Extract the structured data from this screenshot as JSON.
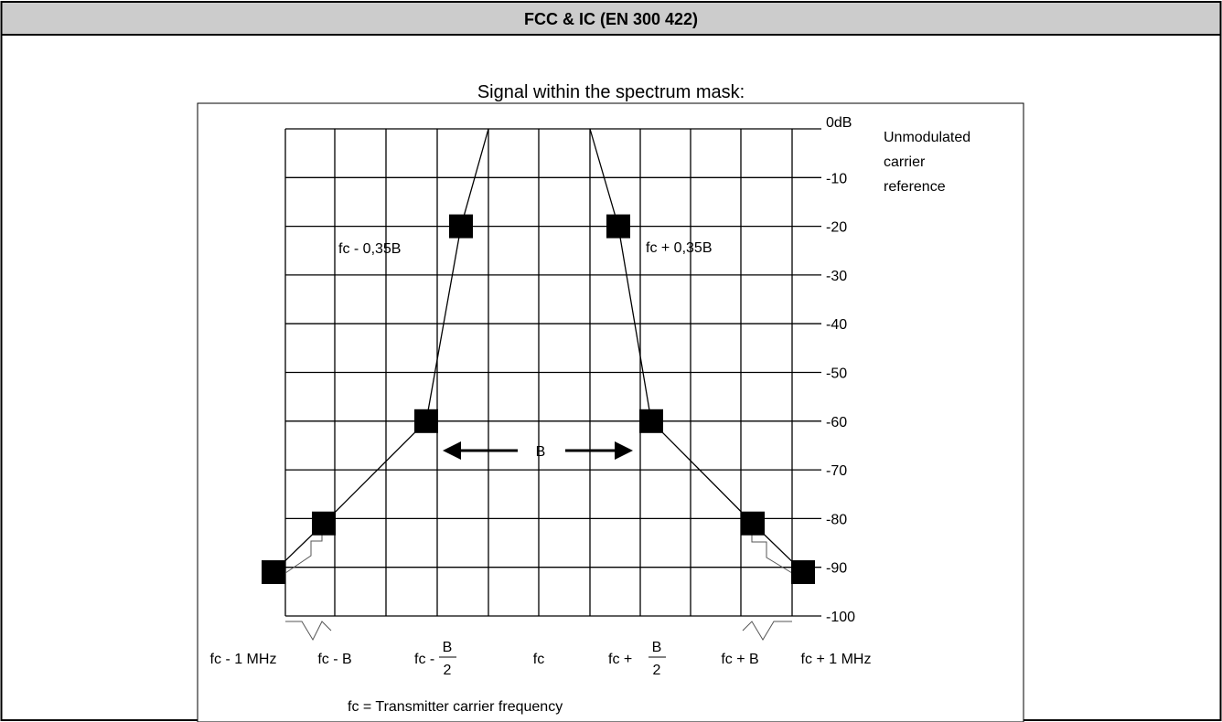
{
  "header": {
    "title": "FCC & IC (EN 300 422)"
  },
  "figure": {
    "caption": "Signal within the spectrum mask:",
    "footnote": "fc = Transmitter carrier frequency",
    "carrier_note": [
      "Unmodulated",
      "carrier",
      "reference"
    ],
    "bandwidth_label": "B",
    "mask_labels": {
      "left": "fc - 0,35B",
      "right": "fc + 0,35B"
    }
  },
  "chart_data": {
    "type": "line",
    "title": "Signal within the spectrum mask:",
    "ylabel": "",
    "xlabel": "",
    "y_tick_labels": [
      "0dB",
      "-10",
      "-20",
      "-30",
      "-40",
      "-50",
      "-60",
      "-70",
      "-80",
      "-90",
      "-100"
    ],
    "ylim": [
      -100,
      0
    ],
    "x_tick_labels": {
      "fc_minus_1mhz": "fc - 1 MHz",
      "fc_minus_b": "fc - B",
      "fc_minus_half_prefix": "fc -",
      "half_b_num": "B",
      "half_b_den": "2",
      "fc": "fc",
      "fc_plus_half_prefix": "fc +",
      "fc_plus_b": "fc + B",
      "fc_plus_1mhz": "fc + 1 MHz"
    },
    "grid": true,
    "series": [
      {
        "name": "",
        "note": "mask upper edge, symmetric about fc",
        "points": [
          {
            "x": "fc - 1 MHz",
            "y": -91
          },
          {
            "x": "fc - B",
            "y": -81
          },
          {
            "x": "fc - B/2",
            "y": -60
          },
          {
            "x": "fc - 0,35B",
            "y": -20
          },
          {
            "x": "fc - 0,25B",
            "y": 0
          },
          {
            "x": "fc + 0,25B",
            "y": 0
          },
          {
            "x": "fc + 0,35B",
            "y": -20
          },
          {
            "x": "fc + B/2",
            "y": -60
          },
          {
            "x": "fc + B",
            "y": -81
          },
          {
            "x": "fc + 1 MHz",
            "y": -91
          }
        ]
      }
    ],
    "markers_dB": [
      -91,
      -81,
      -60,
      -20,
      -20,
      -60,
      -81,
      -91
    ]
  }
}
